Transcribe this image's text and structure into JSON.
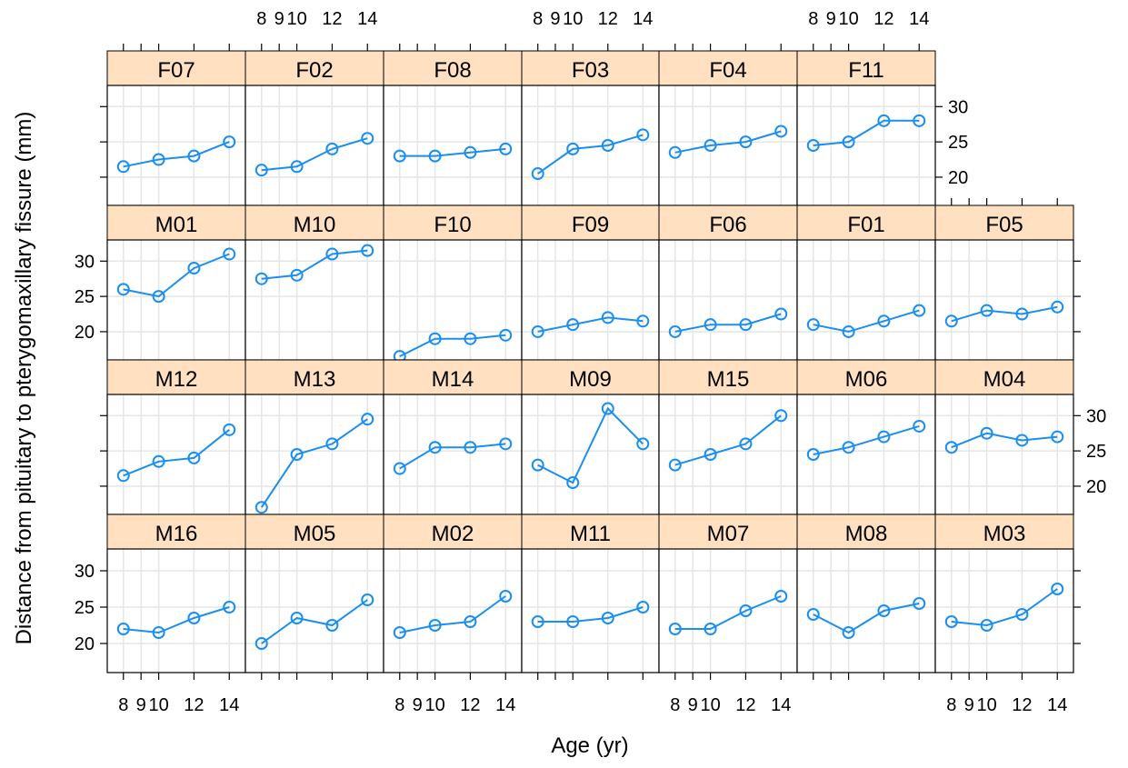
{
  "colors": {
    "series": "#1a8fef",
    "strip": "#ffe0c0",
    "grid": "#e6e6e6",
    "frame": "#000000"
  },
  "chart_data": {
    "type": "line",
    "layout": "trellis",
    "xlabel": "Age (yr)",
    "ylabel": "Distance from pituitary to pterygomaxillary fissure (mm)",
    "x": [
      8,
      10,
      12,
      14
    ],
    "x_ticks": [
      8,
      9,
      10,
      12,
      14
    ],
    "x_tick_labels": [
      "8",
      "9",
      "10",
      "12",
      "14"
    ],
    "y_ticks": [
      20,
      25,
      30
    ],
    "xlim": [
      7.6,
      14.4
    ],
    "ylim": [
      16,
      33
    ],
    "grid": true,
    "marker": "open-circle",
    "rows": [
      {
        "panels": [
          {
            "label": "F07",
            "values": [
              21.5,
              22.5,
              23,
              25
            ]
          },
          {
            "label": "F02",
            "values": [
              21,
              21.5,
              24,
              25.5
            ]
          },
          {
            "label": "F08",
            "values": [
              23,
              23,
              23.5,
              24
            ]
          },
          {
            "label": "F03",
            "values": [
              20.5,
              24,
              24.5,
              26
            ]
          },
          {
            "label": "F04",
            "values": [
              23.5,
              24.5,
              25,
              26.5
            ]
          },
          {
            "label": "F11",
            "values": [
              24.5,
              25,
              28,
              28
            ]
          }
        ]
      },
      {
        "panels": [
          {
            "label": "M01",
            "values": [
              26,
              25,
              29,
              31
            ]
          },
          {
            "label": "M10",
            "values": [
              27.5,
              28,
              31,
              31.5
            ]
          },
          {
            "label": "F10",
            "values": [
              16.5,
              19,
              19,
              19.5
            ]
          },
          {
            "label": "F09",
            "values": [
              20,
              21,
              22,
              21.5
            ]
          },
          {
            "label": "F06",
            "values": [
              20,
              21,
              21,
              22.5
            ]
          },
          {
            "label": "F01",
            "values": [
              21,
              20,
              21.5,
              23
            ]
          },
          {
            "label": "F05",
            "values": [
              21.5,
              23,
              22.5,
              23.5
            ]
          }
        ]
      },
      {
        "panels": [
          {
            "label": "M12",
            "values": [
              21.5,
              23.5,
              24,
              28
            ]
          },
          {
            "label": "M13",
            "values": [
              17,
              24.5,
              26,
              29.5
            ]
          },
          {
            "label": "M14",
            "values": [
              22.5,
              25.5,
              25.5,
              26
            ]
          },
          {
            "label": "M09",
            "values": [
              23,
              20.5,
              31,
              26
            ]
          },
          {
            "label": "M15",
            "values": [
              23,
              24.5,
              26,
              30
            ]
          },
          {
            "label": "M06",
            "values": [
              24.5,
              25.5,
              27,
              28.5
            ]
          },
          {
            "label": "M04",
            "values": [
              25.5,
              27.5,
              26.5,
              27
            ]
          }
        ]
      },
      {
        "panels": [
          {
            "label": "M16",
            "values": [
              22,
              21.5,
              23.5,
              25
            ]
          },
          {
            "label": "M05",
            "values": [
              20,
              23.5,
              22.5,
              26
            ]
          },
          {
            "label": "M02",
            "values": [
              21.5,
              22.5,
              23,
              26.5
            ]
          },
          {
            "label": "M11",
            "values": [
              23,
              23,
              23.5,
              25
            ]
          },
          {
            "label": "M07",
            "values": [
              22,
              22,
              24.5,
              26.5
            ]
          },
          {
            "label": "M08",
            "values": [
              24,
              21.5,
              24.5,
              25.5
            ]
          },
          {
            "label": "M03",
            "values": [
              23,
              22.5,
              24,
              27.5
            ]
          }
        ]
      }
    ]
  }
}
